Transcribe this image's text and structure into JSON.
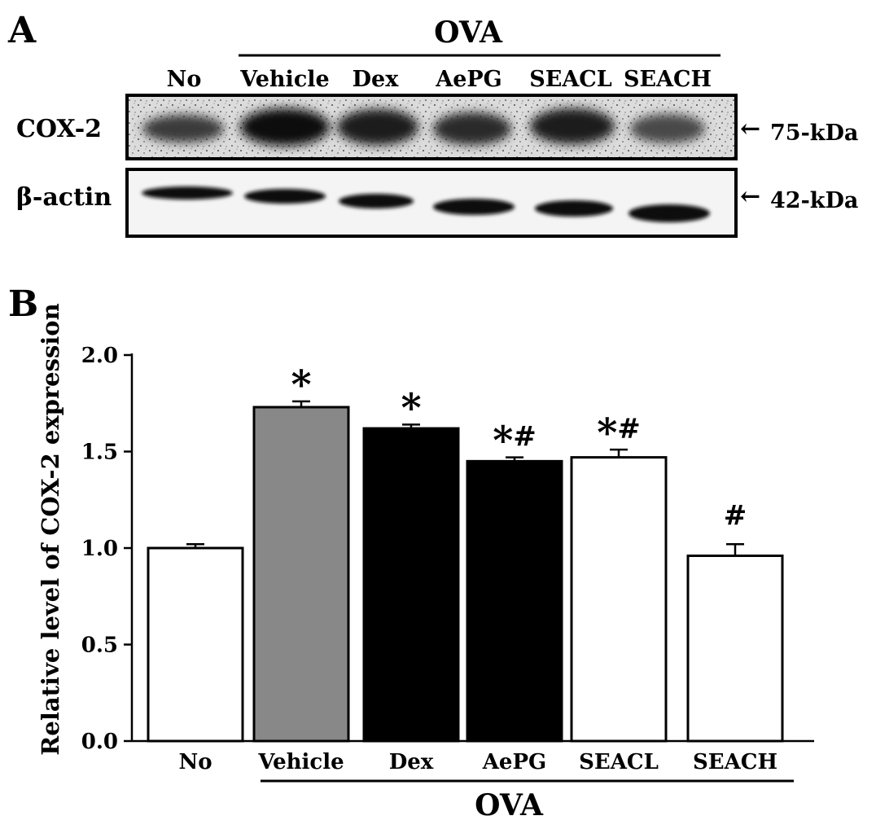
{
  "panel_a": {
    "letter": "A",
    "group_label": "OVA",
    "lane_labels": [
      "No",
      "Vehicle",
      "Dex",
      "AePG",
      "SEACL",
      "SEACH"
    ],
    "rows": [
      {
        "label": "COX-2",
        "size": "75-kDa"
      },
      {
        "label": "β-actin",
        "size": "42-kDa"
      }
    ],
    "arrow_glyph": "←"
  },
  "chart_data": {
    "type": "bar",
    "panel_letter": "B",
    "categories": [
      "No",
      "Vehicle",
      "Dex",
      "AePG",
      "SEACL",
      "SEACH"
    ],
    "values": [
      1.0,
      1.73,
      1.62,
      1.45,
      1.47,
      0.96
    ],
    "errors": [
      0.02,
      0.03,
      0.02,
      0.02,
      0.04,
      0.06
    ],
    "annotations": [
      "",
      "*",
      "*",
      "*#",
      "*#",
      "#"
    ],
    "fills": [
      "#ffffff",
      "#888888",
      "#000000",
      "#000000",
      "#ffffff",
      "#ffffff"
    ],
    "ylabel": "Relative level of COX-2 expression",
    "xlabel": "",
    "group_label": "OVA",
    "ylim": [
      0.0,
      2.0
    ],
    "yticks": [
      "0.0",
      "0.5",
      "1.0",
      "1.5",
      "2.0"
    ],
    "grid": false
  }
}
